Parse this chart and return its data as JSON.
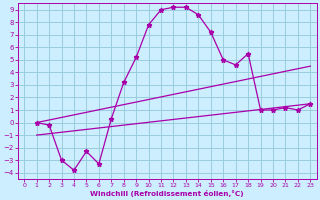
{
  "xlabel": "Windchill (Refroidissement éolien,°C)",
  "background_color": "#cceeff",
  "grid_color": "#99ccdd",
  "line_color": "#aa00aa",
  "xlim": [
    -0.5,
    23.5
  ],
  "ylim": [
    -4.5,
    9.5
  ],
  "xticks": [
    0,
    1,
    2,
    3,
    4,
    5,
    6,
    7,
    8,
    9,
    10,
    11,
    12,
    13,
    14,
    15,
    16,
    17,
    18,
    19,
    20,
    21,
    22,
    23
  ],
  "yticks": [
    -4,
    -3,
    -2,
    -1,
    0,
    1,
    2,
    3,
    4,
    5,
    6,
    7,
    8,
    9
  ],
  "line1_x": [
    1,
    2,
    3,
    4,
    5,
    6,
    7,
    8,
    9,
    10,
    11,
    12,
    13,
    14,
    15,
    16,
    17,
    18,
    19,
    20,
    21,
    22,
    23
  ],
  "line1_y": [
    0.0,
    -0.2,
    -3.0,
    -3.8,
    -2.3,
    -3.3,
    0.3,
    3.2,
    5.2,
    7.8,
    9.0,
    9.2,
    9.2,
    8.6,
    7.2,
    5.0,
    4.6,
    5.5,
    1.0,
    1.0,
    1.2,
    1.0,
    1.5
  ],
  "line2_x": [
    1,
    23
  ],
  "line2_y": [
    0.0,
    4.5
  ],
  "line3_x": [
    1,
    23
  ],
  "line3_y": [
    -1.0,
    1.5
  ]
}
